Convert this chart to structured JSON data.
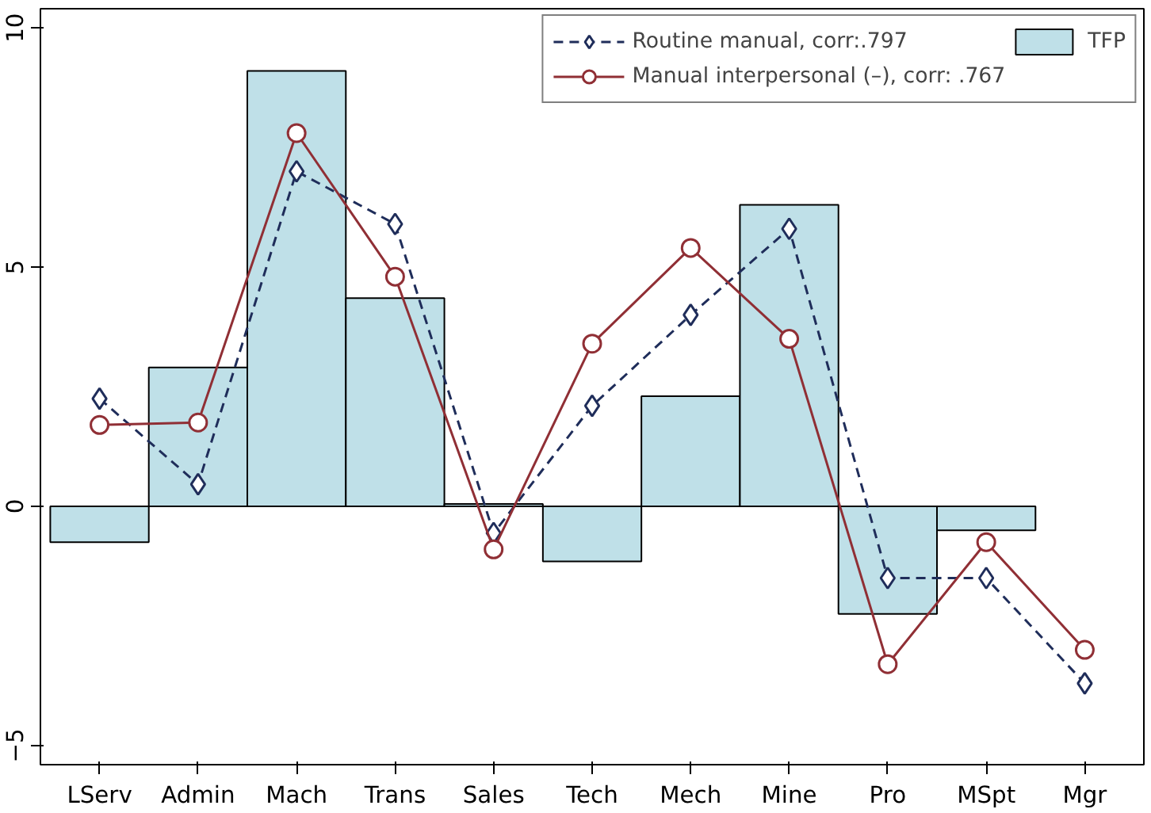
{
  "chart_data": {
    "type": "bar",
    "categories": [
      "LServ",
      "Admin",
      "Mach",
      "Trans",
      "Sales",
      "Tech",
      "Mech",
      "Mine",
      "Pro",
      "MSpt",
      "Mgr"
    ],
    "series": [
      {
        "name": "Routine manual, corr:.797",
        "type": "line",
        "color": "#1f2d5a",
        "line_style": "dashed",
        "marker": "diamond",
        "values": [
          2.25,
          0.46,
          7.0,
          5.9,
          -0.56,
          2.1,
          4.0,
          5.8,
          -1.5,
          -1.5,
          -3.7
        ]
      },
      {
        "name": "Manual interpersonal (–), corr: .767",
        "type": "line",
        "color": "#902f35",
        "line_style": "solid",
        "marker": "circle",
        "values": [
          1.7,
          1.75,
          7.8,
          4.8,
          -0.9,
          3.4,
          5.4,
          3.5,
          -3.3,
          -0.75,
          -3.0
        ]
      },
      {
        "name": "TFP",
        "color": "#bfe0e8",
        "values": [
          -0.75,
          2.9,
          9.1,
          4.35,
          0.05,
          -1.15,
          2.3,
          6.3,
          -2.25,
          -0.5,
          null
        ]
      }
    ],
    "ylim": [
      -5.4,
      10.4
    ],
    "yticks": [
      -5,
      0,
      5,
      10
    ],
    "grid": false,
    "legend": "top right"
  }
}
